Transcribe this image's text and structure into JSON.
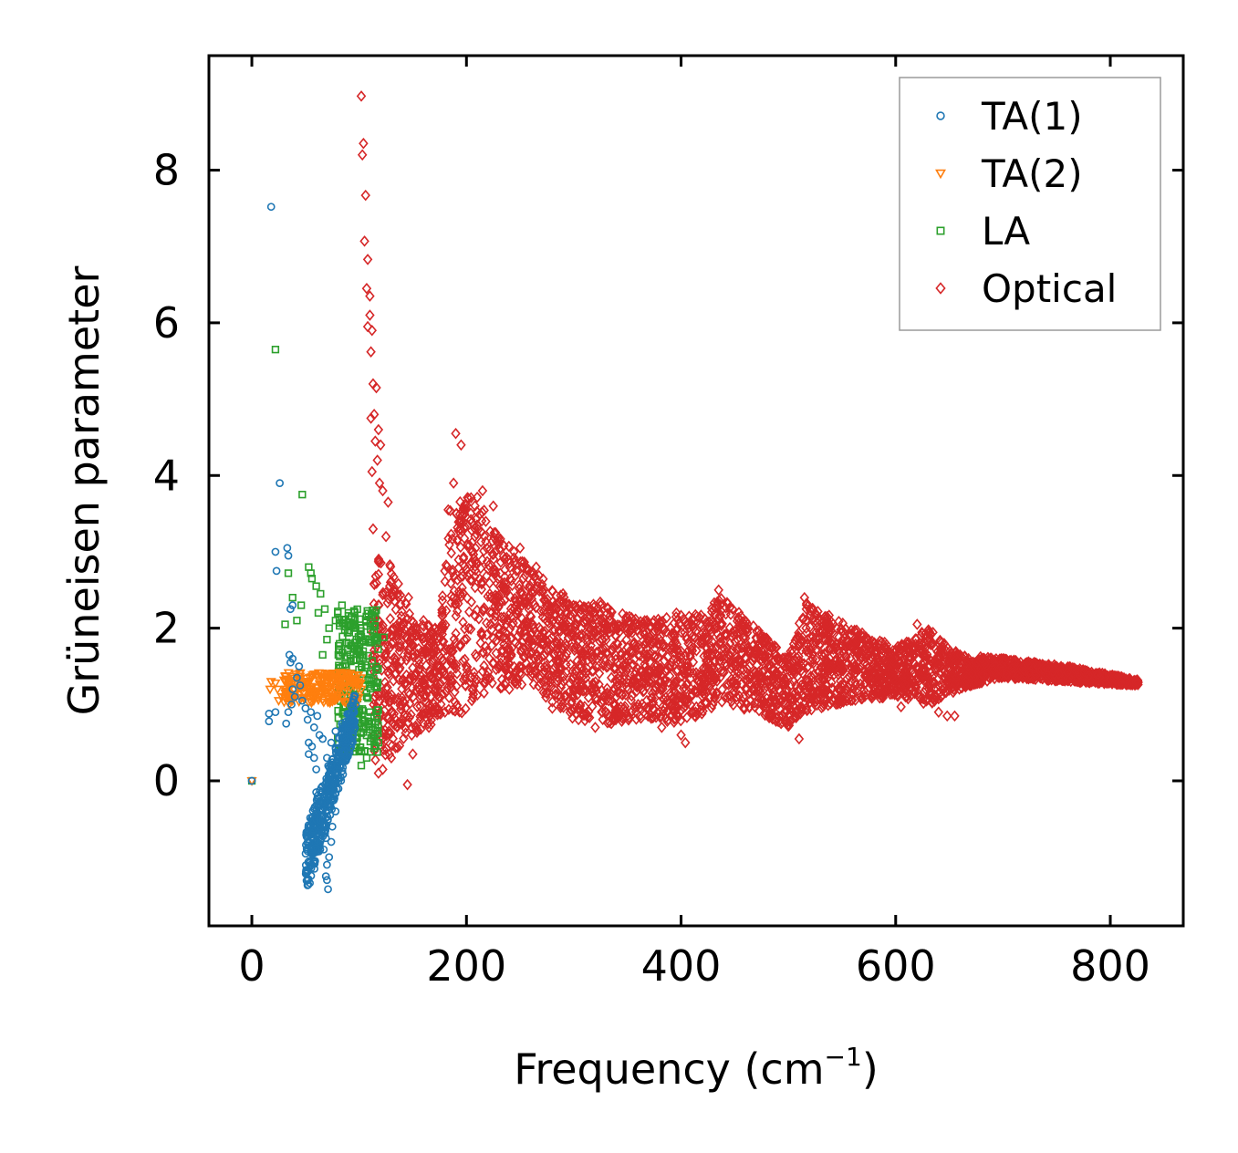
{
  "chart_data": {
    "type": "scatter",
    "title": "",
    "xlabel": "Frequency (cm",
    "xlabel_sup": "−1",
    "xlabel_tail": ")",
    "ylabel": "Grüneisen parameter",
    "xlim": [
      -40,
      868
    ],
    "ylim": [
      -1.9,
      9.5
    ],
    "xticks": [
      0,
      200,
      400,
      600,
      800
    ],
    "xtick_labels": [
      "0",
      "200",
      "400",
      "600",
      "800"
    ],
    "yticks": [
      0,
      2,
      4,
      6,
      8
    ],
    "ytick_labels": [
      "0",
      "2",
      "4",
      "6",
      "8"
    ],
    "legend_position": "top-right",
    "series": [
      {
        "name": "TA(1)",
        "marker": "circle",
        "color": "#1f77b4",
        "points": [
          [
            0,
            0
          ],
          [
            18,
            7.52
          ],
          [
            26,
            3.9
          ],
          [
            22,
            3.0
          ],
          [
            23,
            2.75
          ],
          [
            33,
            3.05
          ],
          [
            34,
            2.95
          ],
          [
            36,
            2.25
          ],
          [
            38,
            2.3
          ],
          [
            35,
            1.65
          ],
          [
            36,
            1.55
          ],
          [
            38,
            1.6
          ],
          [
            16,
            0.88
          ],
          [
            16,
            0.78
          ],
          [
            22,
            0.9
          ],
          [
            32,
            0.75
          ],
          [
            34,
            0.9
          ],
          [
            37,
            1.0
          ],
          [
            40,
            1.1
          ],
          [
            38,
            1.2
          ],
          [
            42,
            1.35
          ],
          [
            45,
            1.25
          ],
          [
            44,
            1.5
          ],
          [
            47,
            1.05
          ],
          [
            50,
            0.95
          ],
          [
            52,
            0.8
          ],
          [
            53,
            0.5
          ],
          [
            56,
            0.45
          ],
          [
            53,
            0.35
          ],
          [
            58,
            0.3
          ],
          [
            60,
            0.15
          ],
          [
            60,
            -0.15
          ],
          [
            62,
            -0.3
          ],
          [
            59,
            -0.45
          ],
          [
            63,
            -0.6
          ],
          [
            66,
            -0.45
          ],
          [
            69,
            -0.75
          ],
          [
            67,
            -0.9
          ],
          [
            70,
            -1.1
          ],
          [
            69,
            -1.25
          ],
          [
            70,
            -1.3
          ],
          [
            71,
            -1.42
          ],
          [
            72,
            -1.0
          ],
          [
            74,
            -0.8
          ],
          [
            75,
            -0.6
          ],
          [
            78,
            -0.4
          ],
          [
            76,
            -0.2
          ],
          [
            80,
            0.1
          ],
          [
            82,
            0.2
          ],
          [
            85,
            0.35
          ],
          [
            88,
            0.55
          ],
          [
            90,
            0.65
          ],
          [
            93,
            0.8
          ],
          [
            95,
            0.9
          ],
          [
            97,
            1.0
          ],
          [
            84,
            0.75
          ],
          [
            78,
            0.65
          ],
          [
            74,
            0.5
          ],
          [
            66,
            0.55
          ],
          [
            63,
            0.6
          ],
          [
            58,
            0.7
          ],
          [
            55,
            0.9
          ],
          [
            61,
            0.85
          ],
          [
            70,
            0.3
          ]
        ],
        "dense_region": [
          [
            52,
            0.5
          ],
          [
            65,
            -1.2
          ],
          [
            80,
            -0.3
          ],
          [
            96,
            0.95
          ]
        ]
      },
      {
        "name": "TA(2)",
        "marker": "triangle-down",
        "color": "#ff7f0e",
        "points": [
          [
            0,
            0
          ],
          [
            17,
            1.2
          ],
          [
            18,
            1.3
          ],
          [
            22,
            1.28
          ],
          [
            24,
            1.2
          ],
          [
            25,
            1.05
          ],
          [
            28,
            1.1
          ],
          [
            30,
            1.32
          ],
          [
            32,
            1.2
          ],
          [
            35,
            1.0
          ],
          [
            38,
            1.05
          ],
          [
            40,
            1.28
          ],
          [
            44,
            1.22
          ],
          [
            48,
            1.3
          ],
          [
            52,
            1.2
          ],
          [
            56,
            1.1
          ],
          [
            60,
            1.38
          ],
          [
            64,
            1.25
          ],
          [
            70,
            1.4
          ],
          [
            74,
            1.3
          ],
          [
            78,
            1.35
          ],
          [
            82,
            1.42
          ],
          [
            86,
            1.3
          ],
          [
            90,
            1.4
          ],
          [
            94,
            1.38
          ],
          [
            98,
            1.3
          ],
          [
            102,
            1.2
          ]
        ],
        "dense_region": [
          [
            30,
            1.05
          ],
          [
            100,
            1.42
          ]
        ]
      },
      {
        "name": "LA",
        "marker": "square",
        "color": "#2ca02c",
        "points": [
          [
            0,
            0
          ],
          [
            22,
            5.65
          ],
          [
            47,
            3.75
          ],
          [
            53,
            2.8
          ],
          [
            55,
            2.72
          ],
          [
            34,
            2.72
          ],
          [
            56,
            2.65
          ],
          [
            60,
            2.55
          ],
          [
            64,
            2.45
          ],
          [
            38,
            2.4
          ],
          [
            46,
            2.3
          ],
          [
            42,
            2.1
          ],
          [
            31,
            2.05
          ],
          [
            62,
            2.2
          ],
          [
            68,
            2.25
          ],
          [
            72,
            2.0
          ],
          [
            66,
            1.65
          ],
          [
            70,
            1.85
          ],
          [
            78,
            2.1
          ],
          [
            84,
            2.3
          ],
          [
            90,
            2.2
          ],
          [
            95,
            2.0
          ],
          [
            100,
            1.7
          ],
          [
            104,
            1.4
          ],
          [
            107,
            1.1
          ],
          [
            110,
            0.9
          ],
          [
            112,
            0.75
          ],
          [
            114,
            0.55
          ],
          [
            118,
            0.5
          ],
          [
            123,
            1.88
          ],
          [
            100,
            0.4
          ],
          [
            107,
            0.3
          ],
          [
            102,
            0.2
          ],
          [
            115,
            0.7
          ]
        ],
        "dense_region": [
          [
            66,
            1.6
          ],
          [
            118,
            2.3
          ]
        ]
      },
      {
        "name": "Optical",
        "marker": "diamond",
        "color": "#d62728",
        "points": [
          [
            102,
            8.97
          ],
          [
            104,
            8.35
          ],
          [
            103,
            8.2
          ],
          [
            106,
            7.67
          ],
          [
            105,
            7.07
          ],
          [
            108,
            6.83
          ],
          [
            107,
            6.45
          ],
          [
            110,
            6.35
          ],
          [
            110,
            6.1
          ],
          [
            108,
            5.95
          ],
          [
            112,
            5.9
          ],
          [
            111,
            5.62
          ],
          [
            113,
            5.2
          ],
          [
            116,
            5.15
          ],
          [
            111,
            4.75
          ],
          [
            114,
            4.8
          ],
          [
            118,
            4.6
          ],
          [
            115,
            4.45
          ],
          [
            120,
            4.4
          ],
          [
            117,
            4.2
          ],
          [
            112,
            4.05
          ],
          [
            119,
            3.9
          ],
          [
            122,
            3.8
          ],
          [
            127,
            3.65
          ],
          [
            113,
            3.3
          ],
          [
            125,
            3.2
          ],
          [
            145,
            -0.05
          ],
          [
            150,
            0.35
          ],
          [
            149,
            0.6
          ],
          [
            140,
            0.8
          ],
          [
            146,
            2.4
          ],
          [
            160,
            2.1
          ],
          [
            190,
            4.55
          ],
          [
            195,
            4.4
          ],
          [
            188,
            3.9
          ],
          [
            183,
            3.55
          ],
          [
            202,
            3.7
          ],
          [
            215,
            3.8
          ],
          [
            225,
            3.6
          ],
          [
            230,
            3.1
          ],
          [
            250,
            3.05
          ],
          [
            265,
            2.8
          ],
          [
            290,
            2.45
          ],
          [
            300,
            2.2
          ],
          [
            325,
            2.3
          ],
          [
            340,
            2.0
          ],
          [
            350,
            1.75
          ],
          [
            365,
            1.95
          ],
          [
            375,
            1.45
          ],
          [
            382,
            0.7
          ],
          [
            388,
            0.8
          ],
          [
            396,
            0.95
          ],
          [
            400,
            0.6
          ],
          [
            404,
            0.5
          ],
          [
            410,
            0.9
          ],
          [
            425,
            1.3
          ],
          [
            435,
            2.5
          ],
          [
            448,
            2.25
          ],
          [
            462,
            2.05
          ],
          [
            475,
            1.85
          ],
          [
            490,
            1.6
          ],
          [
            498,
            0.75
          ],
          [
            505,
            1.3
          ],
          [
            510,
            0.55
          ],
          [
            515,
            2.4
          ],
          [
            525,
            2.2
          ],
          [
            545,
            2.0
          ],
          [
            555,
            1.85
          ],
          [
            570,
            1.7
          ],
          [
            590,
            1.55
          ],
          [
            605,
            0.97
          ],
          [
            620,
            2.05
          ],
          [
            628,
            1.2
          ],
          [
            634,
            1.02
          ],
          [
            640,
            0.9
          ],
          [
            648,
            0.85
          ],
          [
            655,
            0.85
          ],
          [
            660,
            1.65
          ],
          [
            680,
            1.6
          ],
          [
            700,
            1.55
          ],
          [
            720,
            1.5
          ],
          [
            740,
            1.48
          ],
          [
            760,
            1.42
          ],
          [
            780,
            1.38
          ],
          [
            800,
            1.33
          ],
          [
            815,
            1.3
          ],
          [
            826,
            1.29
          ],
          [
            350,
            0.85
          ],
          [
            360,
            1.0
          ],
          [
            335,
            0.75
          ],
          [
            320,
            0.7
          ],
          [
            280,
            0.95
          ],
          [
            240,
            1.2
          ],
          [
            225,
            1.55
          ],
          [
            205,
            1.05
          ],
          [
            180,
            0.9
          ],
          [
            165,
            0.7
          ],
          [
            130,
            0.3
          ],
          [
            122,
            0.15
          ],
          [
            118,
            0.1
          ]
        ],
        "dense_region": [
          [
            112,
            0.2
          ],
          [
            826,
            4.2
          ]
        ]
      }
    ]
  }
}
